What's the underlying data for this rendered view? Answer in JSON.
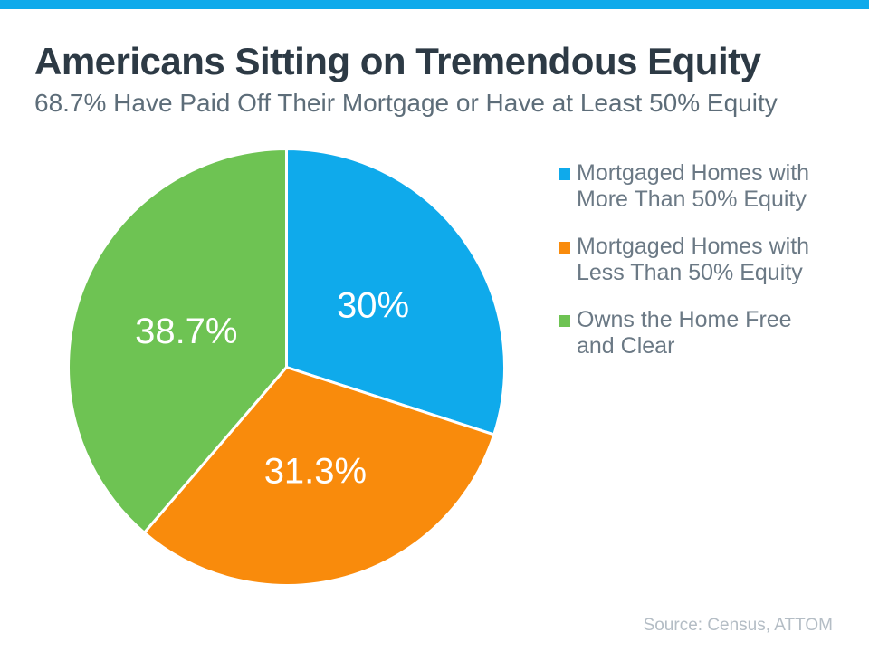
{
  "theme": {
    "accent_blue": "#0FAAEB",
    "title_color": "#2D3A45",
    "subtitle_color": "#5D6D79",
    "legend_text_color": "#6B7985",
    "source_text_color": "#B4BDC5",
    "background": "#FFFFFF"
  },
  "header": {
    "title": "Americans Sitting on Tremendous Equity",
    "subtitle": "68.7% Have Paid Off Their Mortgage or Have at Least 50% Equity"
  },
  "footer": {
    "source": "Source: Census, ATTOM"
  },
  "chart_data": {
    "type": "pie",
    "title": "Americans Sitting on Tremendous Equity",
    "subtitle": "68.7% Have Paid Off Their Mortgage or Have at Least 50% Equity",
    "total": 100,
    "start_angle_deg": 0,
    "direction": "clockwise",
    "legend_position": "right",
    "slice_label_color": "#FFFFFF",
    "slice_border_color": "#FFFFFF",
    "slices": [
      {
        "name": "Mortgaged Homes with More Than 50% Equity",
        "legend_lines": [
          "Mortgaged Homes with",
          "More Than 50% Equity"
        ],
        "value": 30,
        "display": "30%",
        "color": "#0FAAEB"
      },
      {
        "name": "Mortgaged Homes with Less Than 50% Equity",
        "legend_lines": [
          "Mortgaged Homes with",
          "Less Than 50% Equity"
        ],
        "value": 31.3,
        "display": "31.3%",
        "color": "#F98B0C"
      },
      {
        "name": "Owns the Home Free and Clear",
        "legend_lines": [
          "Owns the Home Free",
          "and Clear"
        ],
        "value": 38.7,
        "display": "38.7%",
        "color": "#6EC353"
      }
    ]
  }
}
